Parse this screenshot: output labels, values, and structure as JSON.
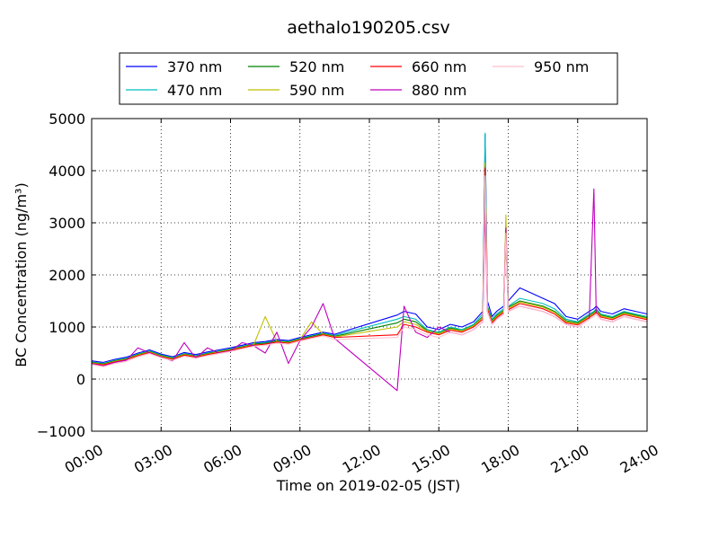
{
  "chart_data": {
    "type": "line",
    "title": "aethalo190205.csv",
    "xlabel": "Time on 2019-02-05 (JST)",
    "ylabel": "BC Concentration (ng/m³)",
    "xlim": [
      "00:00",
      "24:00"
    ],
    "ylim": [
      -1000,
      5000
    ],
    "x_ticks": [
      "00:00",
      "03:00",
      "06:00",
      "09:00",
      "12:00",
      "15:00",
      "18:00",
      "21:00",
      "24:00"
    ],
    "y_ticks": [
      "−1000",
      "0",
      "1000",
      "2000",
      "3000",
      "4000",
      "5000"
    ],
    "grid": true,
    "legend_position": "top-center",
    "x_hours": [
      0.0,
      0.5,
      1.0,
      1.5,
      2.0,
      2.5,
      3.0,
      3.5,
      4.0,
      4.5,
      5.0,
      5.5,
      6.0,
      6.5,
      7.0,
      7.5,
      8.0,
      8.5,
      9.0,
      9.5,
      10.0,
      10.5,
      13.2,
      13.5,
      14.0,
      14.5,
      15.0,
      15.5,
      16.0,
      16.5,
      16.9,
      17.0,
      17.1,
      17.3,
      17.5,
      17.8,
      17.9,
      18.0,
      18.5,
      19.0,
      19.5,
      20.0,
      20.5,
      21.0,
      21.5,
      21.7,
      21.8,
      22.0,
      22.5,
      23.0,
      23.5,
      24.0
    ],
    "series": [
      {
        "name": "370 nm",
        "color": "#0000ff",
        "values": [
          350,
          320,
          380,
          420,
          500,
          560,
          480,
          430,
          510,
          470,
          520,
          560,
          600,
          650,
          700,
          720,
          760,
          740,
          800,
          850,
          900,
          860,
          1230,
          1300,
          1250,
          1000,
          950,
          1050,
          1000,
          1100,
          1300,
          4700,
          1500,
          1200,
          1300,
          1400,
          2800,
          1500,
          1750,
          1650,
          1550,
          1450,
          1200,
          1150,
          1300,
          1350,
          1400,
          1300,
          1250,
          1350,
          1300,
          1250
        ]
      },
      {
        "name": "470 nm",
        "color": "#00bfbf",
        "values": [
          330,
          300,
          360,
          400,
          480,
          540,
          460,
          410,
          490,
          450,
          500,
          540,
          580,
          630,
          680,
          700,
          740,
          720,
          780,
          830,
          880,
          840,
          1150,
          1200,
          1150,
          950,
          900,
          1000,
          950,
          1050,
          1250,
          4720,
          1400,
          1150,
          1250,
          1350,
          2750,
          1400,
          1550,
          1500,
          1450,
          1350,
          1150,
          1100,
          1250,
          1300,
          1350,
          1250,
          1200,
          1300,
          1250,
          1200
        ]
      },
      {
        "name": "520 nm",
        "color": "#008000",
        "values": [
          320,
          290,
          350,
          390,
          470,
          530,
          450,
          400,
          480,
          440,
          490,
          530,
          570,
          620,
          670,
          690,
          730,
          710,
          770,
          820,
          870,
          820,
          1080,
          1150,
          1100,
          930,
          880,
          980,
          930,
          1030,
          1200,
          4100,
          1380,
          1120,
          1220,
          1320,
          2800,
          1380,
          1500,
          1450,
          1400,
          1300,
          1120,
          1080,
          1220,
          1280,
          1330,
          1230,
          1180,
          1280,
          1230,
          1180
        ]
      },
      {
        "name": "590 nm",
        "color": "#bfbf00",
        "values": [
          310,
          280,
          340,
          380,
          460,
          520,
          440,
          390,
          470,
          430,
          480,
          520,
          560,
          610,
          660,
          1200,
          720,
          700,
          760,
          1100,
          860,
          810,
          1000,
          1100,
          1050,
          920,
          870,
          960,
          920,
          1020,
          1180,
          4150,
          1360,
          1100,
          1200,
          1300,
          3150,
          1350,
          1480,
          1430,
          1380,
          1280,
          1100,
          1060,
          1200,
          1260,
          1310,
          1210,
          1160,
          1260,
          1210,
          1160
        ]
      },
      {
        "name": "660 nm",
        "color": "#ff0000",
        "values": [
          300,
          270,
          330,
          370,
          450,
          510,
          430,
          380,
          460,
          420,
          470,
          510,
          550,
          600,
          650,
          670,
          710,
          690,
          750,
          800,
          850,
          800,
          850,
          1050,
          1000,
          900,
          850,
          940,
          900,
          1000,
          1150,
          4050,
          1340,
          1080,
          1180,
          1280,
          2850,
          1330,
          1450,
          1400,
          1350,
          1250,
          1080,
          1040,
          1180,
          1240,
          1290,
          1190,
          1140,
          1240,
          1190,
          1140
        ]
      },
      {
        "name": "880 nm",
        "color": "#bf00bf",
        "values": [
          300,
          250,
          320,
          360,
          600,
          500,
          420,
          350,
          700,
          400,
          600,
          500,
          540,
          700,
          640,
          500,
          900,
          300,
          740,
          1000,
          1450,
          780,
          -220,
          1400,
          900,
          800,
          1000,
          900,
          850,
          950,
          1100,
          3300,
          1300,
          1050,
          1150,
          1250,
          2900,
          1300,
          1400,
          1350,
          1300,
          1200,
          1050,
          1000,
          1150,
          3650,
          1250,
          1150,
          1100,
          1200,
          1150,
          1100
        ]
      },
      {
        "name": "950 nm",
        "color": "#ffc0cb",
        "values": [
          280,
          240,
          300,
          340,
          430,
          490,
          410,
          360,
          440,
          400,
          450,
          490,
          530,
          580,
          630,
          650,
          690,
          670,
          730,
          780,
          830,
          760,
          800,
          1000,
          950,
          850,
          800,
          900,
          850,
          950,
          1100,
          3900,
          1300,
          1050,
          1150,
          1250,
          2800,
          1300,
          1400,
          1350,
          1300,
          1200,
          1050,
          1000,
          1150,
          1200,
          1250,
          1150,
          1100,
          1200,
          1150,
          1100
        ]
      }
    ]
  }
}
